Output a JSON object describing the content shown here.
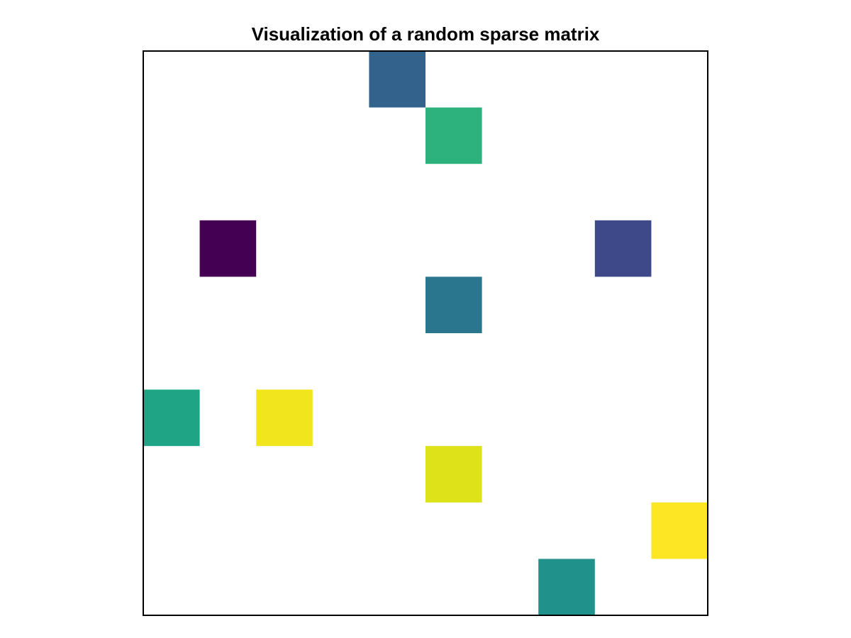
{
  "chart_data": {
    "type": "heatmap",
    "title": "Visualization of a random sparse matrix",
    "xlabel": "",
    "ylabel": "",
    "grid": false,
    "legend": "none",
    "colormap": "viridis",
    "rows": 10,
    "cols": 10,
    "cells": [
      {
        "row": 0,
        "col": 4,
        "value": 0.27,
        "color": "#33638d"
      },
      {
        "row": 1,
        "col": 5,
        "value": 0.7,
        "color": "#2db27d"
      },
      {
        "row": 3,
        "col": 1,
        "value": 0.0,
        "color": "#440154"
      },
      {
        "row": 3,
        "col": 8,
        "value": 0.17,
        "color": "#3e4989"
      },
      {
        "row": 4,
        "col": 5,
        "value": 0.37,
        "color": "#2a768e"
      },
      {
        "row": 6,
        "col": 0,
        "value": 0.6,
        "color": "#20a486"
      },
      {
        "row": 6,
        "col": 2,
        "value": 0.98,
        "color": "#f1e51d"
      },
      {
        "row": 7,
        "col": 5,
        "value": 0.92,
        "color": "#dde318"
      },
      {
        "row": 8,
        "col": 9,
        "value": 1.0,
        "color": "#fde725"
      },
      {
        "row": 9,
        "col": 7,
        "value": 0.5,
        "color": "#21918c"
      }
    ]
  }
}
